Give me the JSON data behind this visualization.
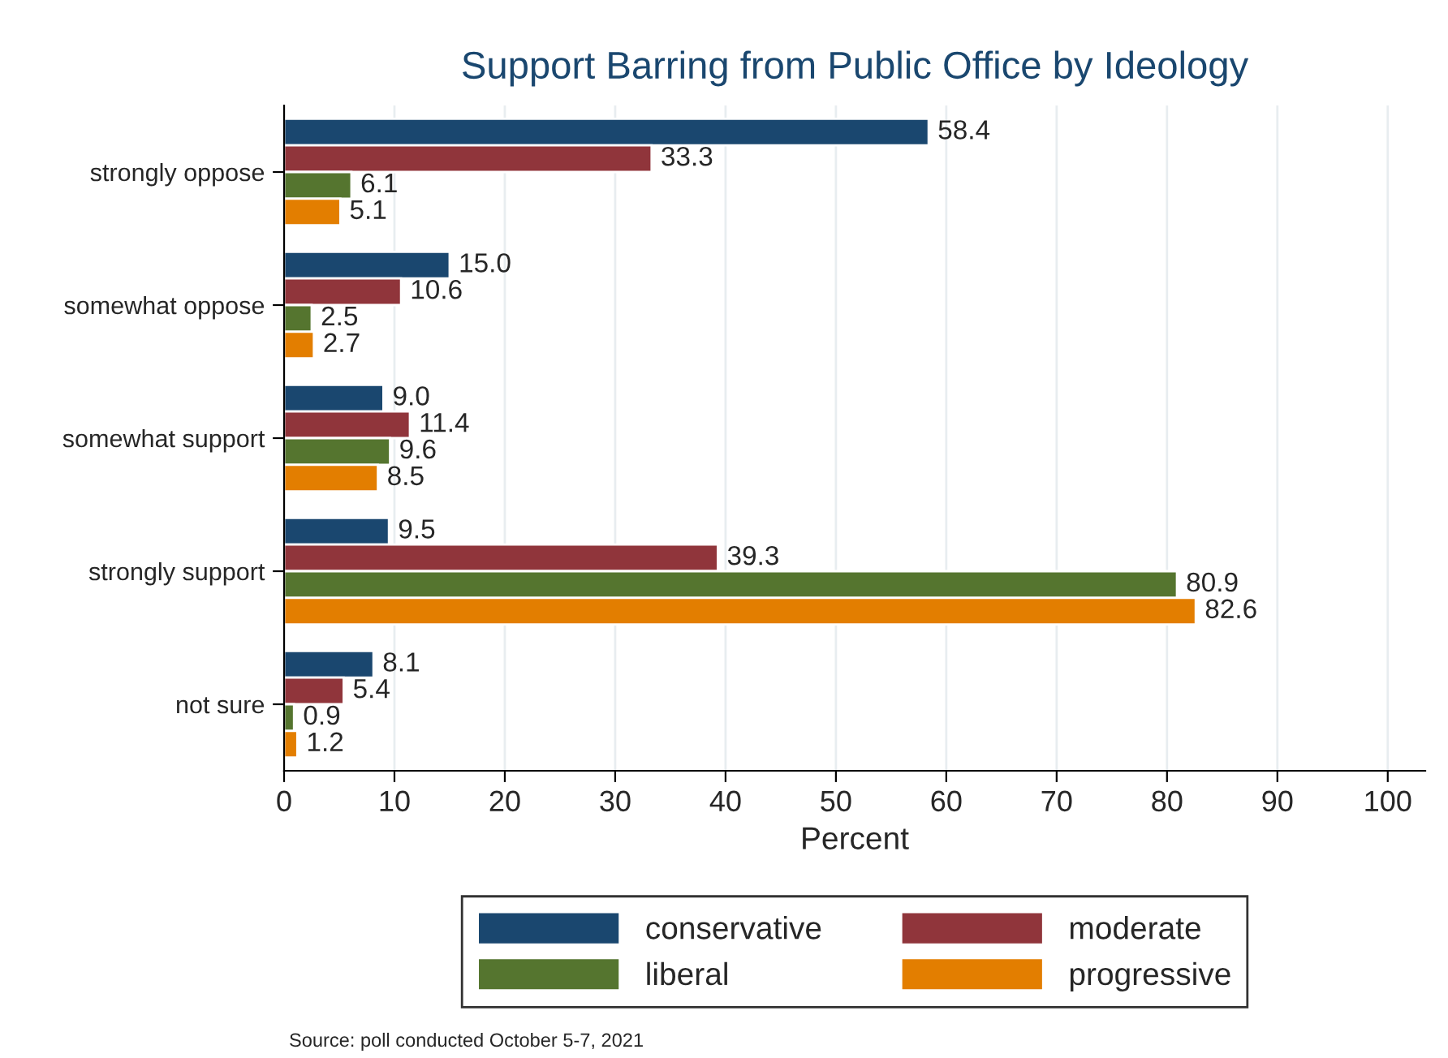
{
  "chart_data": {
    "type": "bar",
    "orientation": "horizontal",
    "title": "Support Barring from Public Office by Ideology",
    "xlabel": "Percent",
    "categories": [
      "strongly oppose",
      "somewhat oppose",
      "somewhat support",
      "strongly support",
      "not sure"
    ],
    "series": [
      {
        "name": "conservative",
        "color": "#1a476f",
        "values": [
          58.4,
          15.0,
          9.0,
          9.5,
          8.1
        ],
        "value_labels": [
          "58.4",
          "15.0",
          "9.0",
          "9.5",
          "8.1"
        ]
      },
      {
        "name": "moderate",
        "color": "#90353b",
        "values": [
          33.3,
          10.6,
          11.4,
          39.3,
          5.4
        ],
        "value_labels": [
          "33.3",
          "10.6",
          "11.4",
          "39.3",
          "5.4"
        ]
      },
      {
        "name": "liberal",
        "color": "#55752f",
        "values": [
          6.1,
          2.5,
          9.6,
          80.9,
          0.9
        ],
        "value_labels": [
          "6.1",
          "2.5",
          "9.6",
          "80.9",
          "0.9"
        ]
      },
      {
        "name": "progressive",
        "color": "#e37e00",
        "values": [
          5.1,
          2.7,
          8.5,
          82.6,
          1.2
        ],
        "value_labels": [
          "5.1",
          "2.7",
          "8.5",
          "82.6",
          "1.2"
        ]
      }
    ],
    "xlim": [
      0,
      103.4
    ],
    "xticks": [
      0,
      10,
      20,
      30,
      40,
      50,
      60,
      70,
      80,
      90,
      100
    ],
    "grid": "x",
    "legend": "bottom",
    "annotations": [
      "Source: poll conducted October 5-7, 2021"
    ]
  }
}
